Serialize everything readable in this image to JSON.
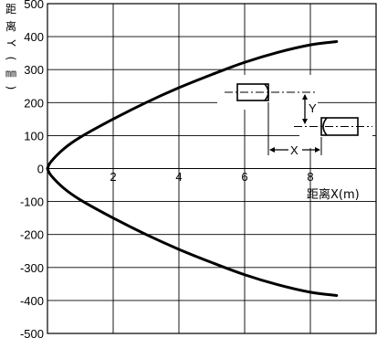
{
  "chart_data": {
    "type": "line",
    "xlabel": "距离X(m)",
    "ylabel_chars": [
      "距",
      "离",
      "Y",
      "(",
      "㎜",
      ")"
    ],
    "xlim": [
      0,
      10
    ],
    "ylim": [
      -500,
      500
    ],
    "x_ticks": [
      2,
      4,
      6,
      8
    ],
    "y_ticks": [
      500,
      400,
      300,
      200,
      100,
      0,
      -100,
      -200,
      -300,
      -400,
      -500
    ],
    "grid": true,
    "series": [
      {
        "points": [
          [
            0,
            0
          ],
          [
            0.1,
            20
          ],
          [
            0.5,
            60
          ],
          [
            1,
            95
          ],
          [
            2,
            150
          ],
          [
            3,
            200
          ],
          [
            4,
            245
          ],
          [
            5,
            285
          ],
          [
            6,
            322
          ],
          [
            7,
            352
          ],
          [
            8,
            375
          ],
          [
            8.8,
            385
          ]
        ]
      },
      {
        "points": [
          [
            0,
            0
          ],
          [
            0.1,
            -20
          ],
          [
            0.5,
            -60
          ],
          [
            1,
            -95
          ],
          [
            2,
            -150
          ],
          [
            3,
            -200
          ],
          [
            4,
            -245
          ],
          [
            5,
            -285
          ],
          [
            6,
            -322
          ],
          [
            7,
            -352
          ],
          [
            8,
            -375
          ],
          [
            8.8,
            -385
          ]
        ]
      }
    ],
    "inset_labels": {
      "y": "Y",
      "x": "X"
    }
  }
}
